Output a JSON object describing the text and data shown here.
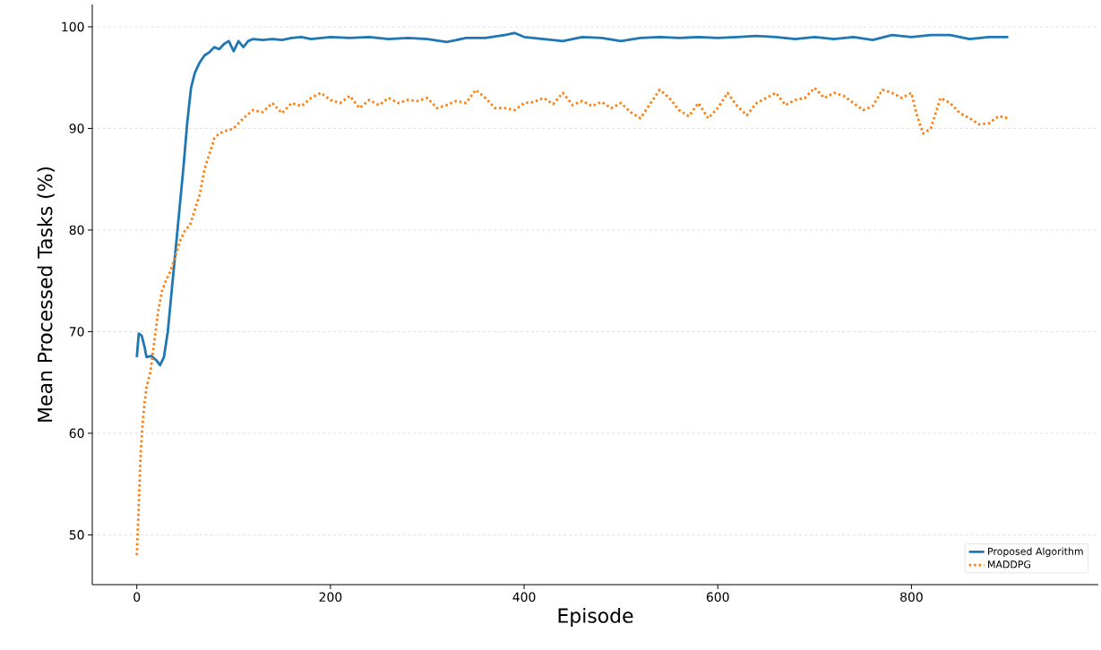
{
  "chart_data": {
    "type": "line",
    "xlabel": "Episode",
    "ylabel": "Mean Processed Tasks (%)",
    "xlim": [
      -46,
      993
    ],
    "ylim": [
      45.1,
      102.2
    ],
    "xticks": [
      0,
      200,
      400,
      600,
      800
    ],
    "yticks": [
      50,
      60,
      70,
      80,
      90,
      100
    ],
    "grid": "y",
    "legend": "bottom right",
    "series": [
      {
        "name": "Proposed Algorithm",
        "color": "#1f77b4",
        "line_style": "solid",
        "x": [
          0,
          2,
          5,
          8,
          10,
          15,
          20,
          24,
          28,
          32,
          36,
          40,
          44,
          48,
          52,
          56,
          60,
          65,
          70,
          75,
          80,
          85,
          90,
          95,
          100,
          105,
          110,
          115,
          120,
          130,
          140,
          150,
          160,
          170,
          180,
          200,
          220,
          240,
          260,
          280,
          300,
          320,
          340,
          360,
          380,
          390,
          400,
          420,
          440,
          460,
          480,
          500,
          520,
          540,
          560,
          580,
          600,
          620,
          640,
          660,
          680,
          700,
          720,
          740,
          760,
          780,
          800,
          820,
          840,
          860,
          880,
          900
        ],
        "values": [
          67.5,
          69.8,
          69.6,
          68.5,
          67.5,
          67.6,
          67.2,
          66.7,
          67.5,
          70,
          74,
          78,
          82,
          86,
          90.5,
          94,
          95.5,
          96.5,
          97.2,
          97.5,
          98,
          97.8,
          98.3,
          98.6,
          97.6,
          98.6,
          98.0,
          98.6,
          98.8,
          98.7,
          98.8,
          98.7,
          98.9,
          99.0,
          98.8,
          99.0,
          98.9,
          99.0,
          98.8,
          98.9,
          98.8,
          98.5,
          98.9,
          98.9,
          99.2,
          99.4,
          99.0,
          98.8,
          98.6,
          99.0,
          98.9,
          98.6,
          98.9,
          99.0,
          98.9,
          99.0,
          98.9,
          99.0,
          99.1,
          99.0,
          98.8,
          99.0,
          98.8,
          99.0,
          98.7,
          99.2,
          99.0,
          99.2,
          99.2,
          98.8,
          99.0,
          99.0
        ]
      },
      {
        "name": "MADDPG",
        "color": "#ff7f0e",
        "line_style": "dotted",
        "x": [
          0,
          2,
          4,
          6,
          8,
          10,
          14,
          18,
          22,
          26,
          30,
          35,
          40,
          45,
          50,
          55,
          60,
          65,
          70,
          75,
          80,
          85,
          90,
          100,
          110,
          120,
          130,
          140,
          150,
          160,
          170,
          180,
          190,
          200,
          210,
          220,
          230,
          240,
          250,
          260,
          270,
          280,
          290,
          300,
          310,
          320,
          330,
          340,
          350,
          360,
          370,
          380,
          390,
          400,
          410,
          420,
          430,
          440,
          450,
          460,
          470,
          480,
          490,
          500,
          510,
          520,
          530,
          540,
          550,
          560,
          570,
          580,
          590,
          600,
          610,
          620,
          630,
          640,
          650,
          660,
          670,
          680,
          690,
          700,
          710,
          720,
          730,
          740,
          750,
          760,
          770,
          780,
          790,
          800,
          805,
          812,
          820,
          830,
          840,
          850,
          860,
          870,
          880,
          890,
          900
        ],
        "values": [
          48,
          53,
          58,
          61,
          63,
          64.5,
          66,
          69,
          72,
          74,
          75,
          76,
          77.5,
          79,
          80,
          80.5,
          82,
          83.5,
          86,
          87.5,
          89,
          89.5,
          89.7,
          90,
          91,
          91.8,
          91.6,
          92.5,
          91.5,
          92.5,
          92.2,
          93.0,
          93.5,
          92.8,
          92.5,
          93.2,
          92.0,
          92.8,
          92.3,
          93.0,
          92.5,
          92.8,
          92.7,
          93,
          92.0,
          92.3,
          92.7,
          92.5,
          93.8,
          93.0,
          92.0,
          92.0,
          91.8,
          92.5,
          92.6,
          93,
          92.4,
          93.5,
          92.3,
          92.7,
          92.2,
          92.6,
          92.0,
          92.5,
          91.6,
          91,
          92.4,
          93.8,
          93.0,
          91.8,
          91.2,
          92.5,
          91.0,
          92.0,
          93.5,
          92.2,
          91.3,
          92.5,
          93.0,
          93.5,
          92.3,
          92.8,
          93.0,
          94.0,
          93.0,
          93.5,
          93.2,
          92.5,
          91.8,
          92.2,
          93.8,
          93.5,
          93,
          93.5,
          91.5,
          89.5,
          90.0,
          93.0,
          92.5,
          91.5,
          91.0,
          90.4,
          90.5,
          91.2,
          91.0
        ]
      }
    ]
  }
}
